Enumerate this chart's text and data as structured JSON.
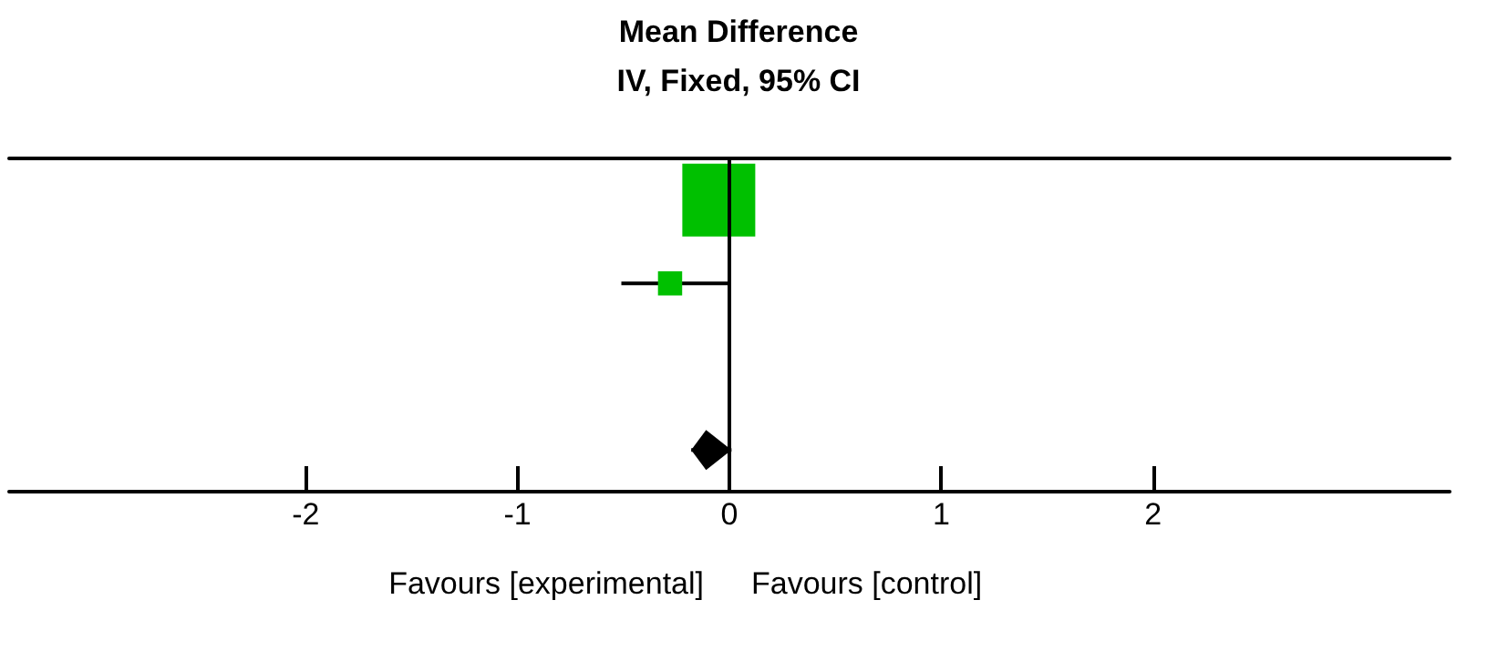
{
  "chart_data": {
    "type": "scatter",
    "title": "Mean Difference",
    "subtitle": "IV, Fixed, 95% CI",
    "orientation": "horizontal",
    "categories": [
      null,
      null,
      null,
      null
    ],
    "series": [
      {
        "type": "bubble",
        "marker": "square",
        "color": "#00c000",
        "values": [
          -0.05,
          -0.28,
          null,
          null
        ],
        "sizes": [
          1,
          0.11,
          null,
          null
        ],
        "errors": [
          null,
          [
            -0.51,
            0.0
          ],
          null,
          null
        ]
      },
      {
        "marker": "diamond",
        "color": "#000000",
        "values": [
          null,
          null,
          null,
          -0.11
        ],
        "errors": [
          null,
          null,
          null,
          [
            -0.18,
            0.01
          ]
        ]
      }
    ],
    "xlim": [
      -3.4,
      3.4
    ],
    "xticks": [
      -2,
      -1,
      0,
      1,
      2
    ],
    "ref_lines": [
      {
        "axis": "x",
        "value": 0,
        "color": "#000000"
      }
    ],
    "annotations": [
      "Favours [experimental]",
      "Favours [control]"
    ],
    "grid": false
  }
}
